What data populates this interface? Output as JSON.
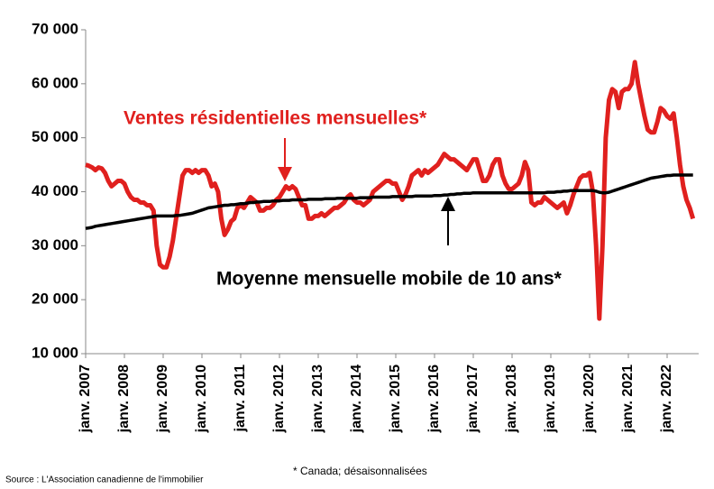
{
  "chart_data": {
    "type": "line",
    "annotations": [
      "Ventes résidentielles mensuelles*",
      "Moyenne mensuelle mobile de 10 ans*"
    ],
    "source": "Source : L'Association canadienne de l'immobilier",
    "footnote": "* Canada; désaisonnalisées",
    "categories": [
      "janv. 2007",
      null,
      null,
      null,
      null,
      null,
      null,
      null,
      null,
      null,
      null,
      null,
      "janv. 2008",
      null,
      null,
      null,
      null,
      null,
      null,
      null,
      null,
      null,
      null,
      null,
      "janv. 2009",
      null,
      null,
      null,
      null,
      null,
      null,
      null,
      null,
      null,
      null,
      null,
      "janv. 2010",
      null,
      null,
      null,
      null,
      null,
      null,
      null,
      null,
      null,
      null,
      null,
      "janv. 2011",
      null,
      null,
      null,
      null,
      null,
      null,
      null,
      null,
      null,
      null,
      null,
      "janv. 2012",
      null,
      null,
      null,
      null,
      null,
      null,
      null,
      null,
      null,
      null,
      null,
      "janv. 2013",
      null,
      null,
      null,
      null,
      null,
      null,
      null,
      null,
      null,
      null,
      null,
      "janv. 2014",
      null,
      null,
      null,
      null,
      null,
      null,
      null,
      null,
      null,
      null,
      null,
      "janv. 2015",
      null,
      null,
      null,
      null,
      null,
      null,
      null,
      null,
      null,
      null,
      null,
      "janv. 2016",
      null,
      null,
      null,
      null,
      null,
      null,
      null,
      null,
      null,
      null,
      null,
      "janv. 2017",
      null,
      null,
      null,
      null,
      null,
      null,
      null,
      null,
      null,
      null,
      null,
      "janv. 2018",
      null,
      null,
      null,
      null,
      null,
      null,
      null,
      null,
      null,
      null,
      null,
      "janv. 2019",
      null,
      null,
      null,
      null,
      null,
      null,
      null,
      null,
      null,
      null,
      null,
      "janv. 2020",
      null,
      null,
      null,
      null,
      null,
      null,
      null,
      null,
      null,
      null,
      null,
      "janv. 2021",
      null,
      null,
      null,
      null,
      null,
      null,
      null,
      null,
      null,
      null,
      null,
      "janv. 2022",
      null,
      null,
      null,
      null,
      null,
      null,
      null,
      null
    ],
    "series": [
      {
        "name": "Ventes résidentielles mensuelles*",
        "color": "#e0201e",
        "values": [
          45000,
          44800,
          44500,
          44000,
          44500,
          44300,
          43500,
          42000,
          41000,
          41500,
          42000,
          42000,
          41500,
          40000,
          39000,
          38500,
          38500,
          38000,
          38000,
          37500,
          37500,
          36500,
          30000,
          26500,
          26000,
          26000,
          28000,
          31000,
          35000,
          39000,
          43000,
          44000,
          44000,
          43500,
          44000,
          43500,
          44000,
          44000,
          43000,
          41000,
          41500,
          40000,
          35000,
          32000,
          33000,
          34500,
          35000,
          37000,
          37500,
          37000,
          38000,
          39000,
          38500,
          38000,
          36500,
          36500,
          37000,
          37000,
          37500,
          38500,
          39000,
          40000,
          41000,
          40500,
          41000,
          40500,
          39000,
          37500,
          37500,
          35000,
          35000,
          35500,
          35500,
          36000,
          35500,
          36000,
          36500,
          37000,
          37000,
          37500,
          38000,
          39000,
          39500,
          38500,
          38000,
          38000,
          37500,
          38000,
          38500,
          40000,
          40500,
          41000,
          41500,
          42000,
          42000,
          41500,
          41500,
          40000,
          38500,
          39500,
          41000,
          43000,
          43500,
          44000,
          43000,
          44000,
          43500,
          44000,
          44500,
          45000,
          46000,
          47000,
          46500,
          46000,
          46000,
          45500,
          45000,
          44500,
          44000,
          45000,
          46000,
          46000,
          44000,
          42000,
          42000,
          43000,
          45000,
          46000,
          46000,
          43000,
          41500,
          40500,
          40500,
          41000,
          41500,
          43000,
          45500,
          44000,
          38000,
          37500,
          38000,
          38000,
          39000,
          38500,
          38000,
          37500,
          37000,
          37500,
          38000,
          36000,
          37500,
          39500,
          41000,
          42500,
          43000,
          43000,
          43500,
          40000,
          30000,
          16500,
          30000,
          50000,
          57000,
          59000,
          58500,
          55500,
          58500,
          59000,
          59000,
          60000,
          64000,
          60000,
          57000,
          54000,
          51500,
          51000,
          51000,
          53000,
          55500,
          55000,
          54000,
          53500,
          54500,
          50000,
          45000,
          41000,
          38500,
          37000,
          35000
        ]
      },
      {
        "name": "Moyenne mensuelle mobile de 10 ans*",
        "color": "#000000",
        "values": [
          33200,
          33300,
          33400,
          33600,
          33700,
          33800,
          33900,
          34000,
          34100,
          34200,
          34300,
          34400,
          34500,
          34600,
          34700,
          34800,
          34900,
          35000,
          35100,
          35200,
          35300,
          35400,
          35500,
          35500,
          35500,
          35500,
          35500,
          35500,
          35600,
          35600,
          35700,
          35800,
          35900,
          36000,
          36200,
          36400,
          36600,
          36800,
          37000,
          37100,
          37200,
          37300,
          37400,
          37500,
          37500,
          37600,
          37600,
          37700,
          37800,
          37800,
          37900,
          38000,
          38000,
          38100,
          38100,
          38200,
          38200,
          38200,
          38300,
          38300,
          38300,
          38400,
          38400,
          38400,
          38500,
          38500,
          38500,
          38500,
          38500,
          38600,
          38600,
          38600,
          38600,
          38600,
          38700,
          38700,
          38700,
          38700,
          38800,
          38800,
          38800,
          38800,
          38800,
          38800,
          38800,
          38900,
          38900,
          38900,
          38900,
          39000,
          39000,
          39000,
          39000,
          39000,
          39000,
          39100,
          39100,
          39100,
          39100,
          39100,
          39100,
          39100,
          39200,
          39200,
          39200,
          39200,
          39200,
          39200,
          39300,
          39300,
          39300,
          39400,
          39400,
          39500,
          39500,
          39600,
          39600,
          39700,
          39700,
          39700,
          39800,
          39800,
          39800,
          39800,
          39800,
          39800,
          39800,
          39800,
          39800,
          39800,
          39800,
          39800,
          39800,
          39800,
          39800,
          39800,
          39800,
          39800,
          39800,
          39800,
          39800,
          39800,
          39800,
          39900,
          39900,
          39900,
          40000,
          40000,
          40100,
          40100,
          40200,
          40200,
          40200,
          40200,
          40200,
          40200,
          40200,
          40200,
          40100,
          39900,
          39800,
          39800,
          39900,
          40100,
          40300,
          40500,
          40700,
          40900,
          41100,
          41300,
          41500,
          41700,
          41900,
          42100,
          42300,
          42500,
          42600,
          42700,
          42800,
          42900,
          43000,
          43000,
          43100,
          43100,
          43100,
          43100,
          43100,
          43100,
          43100
        ]
      }
    ],
    "ylim": [
      10000,
      70000
    ],
    "yticks": [
      {
        "value": 10000,
        "label": "10 000"
      },
      {
        "value": 20000,
        "label": "20 000"
      },
      {
        "value": 30000,
        "label": "30 000"
      },
      {
        "value": 40000,
        "label": "40 000"
      },
      {
        "value": 50000,
        "label": "50 000"
      },
      {
        "value": 60000,
        "label": "60 000"
      },
      {
        "value": 70000,
        "label": "70 000"
      }
    ],
    "grid": false
  }
}
